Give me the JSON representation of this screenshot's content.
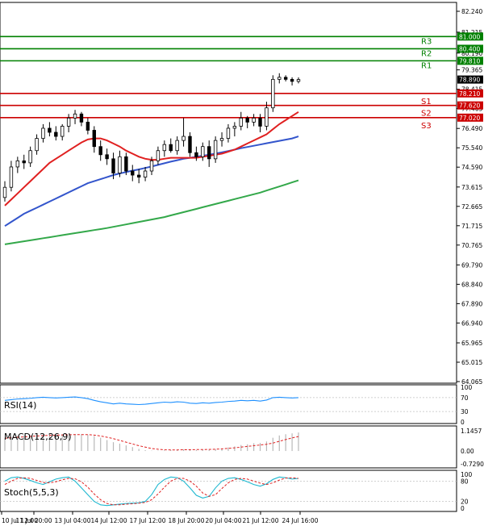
{
  "chart_data": {
    "type": "candlestick",
    "instrument_note": "",
    "main": {
      "yticks": [
        "82.240",
        "81.215",
        "80.190",
        "79.365",
        "78.415",
        "77.465",
        "76.490",
        "75.540",
        "74.590",
        "73.615",
        "72.665",
        "71.715",
        "70.765",
        "69.790",
        "68.840",
        "67.890",
        "66.940",
        "65.965",
        "65.015",
        "64.065"
      ],
      "ylim": [
        64.065,
        82.7
      ],
      "levels": [
        {
          "name": "R3",
          "value": 81.0,
          "label": "81.000",
          "color": "#008000"
        },
        {
          "name": "R2",
          "value": 80.4,
          "label": "80.400",
          "color": "#008000"
        },
        {
          "name": "R1",
          "value": 79.81,
          "label": "79.810",
          "color": "#008000"
        },
        {
          "name": "S1",
          "value": 78.21,
          "label": "78.210",
          "color": "#cc0000"
        },
        {
          "name": "S2",
          "value": 77.62,
          "label": "77.620",
          "color": "#cc0000"
        },
        {
          "name": "S3",
          "value": 77.02,
          "label": "77.020",
          "color": "#cc0000"
        }
      ],
      "current_price": "78.890",
      "candles": [
        [
          73.1,
          73.9,
          72.9,
          73.6
        ],
        [
          73.6,
          74.9,
          73.4,
          74.6
        ],
        [
          74.6,
          75.1,
          74.3,
          74.9
        ],
        [
          74.9,
          75.2,
          74.5,
          74.8
        ],
        [
          74.8,
          75.6,
          74.6,
          75.4
        ],
        [
          75.4,
          76.2,
          75.2,
          76.0
        ],
        [
          76.0,
          76.7,
          75.8,
          76.5
        ],
        [
          76.5,
          76.8,
          76.1,
          76.3
        ],
        [
          76.3,
          76.6,
          75.9,
          76.1
        ],
        [
          76.1,
          76.7,
          75.9,
          76.6
        ],
        [
          76.6,
          77.2,
          76.3,
          77.0
        ],
        [
          77.0,
          77.4,
          76.7,
          77.2
        ],
        [
          77.2,
          77.3,
          76.6,
          76.8
        ],
        [
          76.8,
          77.0,
          76.2,
          76.4
        ],
        [
          76.4,
          76.6,
          75.3,
          75.6
        ],
        [
          75.6,
          75.9,
          74.9,
          75.2
        ],
        [
          75.2,
          75.5,
          74.7,
          75.0
        ],
        [
          75.0,
          75.3,
          74.0,
          74.3
        ],
        [
          74.3,
          75.4,
          74.1,
          75.1
        ],
        [
          75.1,
          75.3,
          74.2,
          74.4
        ],
        [
          74.4,
          74.7,
          73.9,
          74.2
        ],
        [
          74.2,
          74.5,
          73.8,
          74.1
        ],
        [
          74.1,
          74.6,
          73.9,
          74.4
        ],
        [
          74.4,
          75.1,
          74.2,
          74.9
        ],
        [
          74.9,
          75.6,
          74.7,
          75.4
        ],
        [
          75.4,
          75.9,
          75.1,
          75.7
        ],
        [
          75.7,
          76.0,
          75.3,
          75.4
        ],
        [
          75.4,
          76.1,
          75.2,
          75.9
        ],
        [
          75.9,
          77.0,
          75.6,
          76.1
        ],
        [
          76.1,
          76.3,
          75.1,
          75.3
        ],
        [
          75.3,
          75.6,
          74.9,
          75.1
        ],
        [
          75.1,
          75.8,
          74.9,
          75.6
        ],
        [
          75.6,
          75.9,
          74.6,
          75.0
        ],
        [
          75.0,
          76.1,
          74.8,
          75.9
        ],
        [
          75.9,
          76.3,
          75.6,
          76.0
        ],
        [
          76.0,
          76.7,
          75.8,
          76.5
        ],
        [
          76.5,
          76.8,
          76.1,
          76.6
        ],
        [
          76.6,
          77.3,
          76.4,
          77.0
        ],
        [
          77.0,
          77.1,
          76.5,
          76.8
        ],
        [
          76.8,
          77.2,
          76.6,
          77.0
        ],
        [
          77.0,
          77.2,
          76.3,
          76.6
        ],
        [
          76.6,
          77.8,
          76.4,
          77.5
        ],
        [
          77.5,
          79.1,
          77.3,
          78.9
        ],
        [
          78.9,
          79.2,
          78.7,
          79.0
        ],
        [
          79.0,
          79.1,
          78.8,
          78.9
        ],
        [
          78.9,
          79.0,
          78.6,
          78.8
        ],
        [
          78.8,
          79.0,
          78.7,
          78.89
        ]
      ],
      "ma_fast": [
        72.7,
        73.0,
        73.3,
        73.6,
        73.9,
        74.2,
        74.5,
        74.8,
        75.0,
        75.2,
        75.4,
        75.6,
        75.8,
        75.95,
        76.0,
        76.0,
        75.9,
        75.75,
        75.6,
        75.4,
        75.25,
        75.1,
        75.0,
        74.95,
        74.95,
        75.0,
        75.05,
        75.05,
        75.05,
        75.05,
        75.05,
        75.1,
        75.15,
        75.2,
        75.25,
        75.35,
        75.45,
        75.6,
        75.75,
        75.9,
        76.05,
        76.2,
        76.45,
        76.7,
        76.9,
        77.1,
        77.3
      ],
      "ma_mid": [
        71.7,
        71.9,
        72.1,
        72.3,
        72.45,
        72.6,
        72.75,
        72.9,
        73.05,
        73.2,
        73.35,
        73.5,
        73.65,
        73.8,
        73.9,
        74.0,
        74.1,
        74.2,
        74.28,
        74.35,
        74.42,
        74.48,
        74.55,
        74.62,
        74.7,
        74.78,
        74.86,
        74.93,
        75.0,
        75.05,
        75.1,
        75.15,
        75.2,
        75.26,
        75.32,
        75.38,
        75.45,
        75.52,
        75.58,
        75.64,
        75.7,
        75.76,
        75.82,
        75.88,
        75.94,
        76.0,
        76.1
      ],
      "ma_slow": [
        70.8,
        70.85,
        70.9,
        70.95,
        71.0,
        71.05,
        71.1,
        71.15,
        71.2,
        71.25,
        71.3,
        71.35,
        71.4,
        71.45,
        71.5,
        71.55,
        71.6,
        71.66,
        71.72,
        71.78,
        71.84,
        71.9,
        71.96,
        72.02,
        72.08,
        72.14,
        72.22,
        72.3,
        72.38,
        72.46,
        72.54,
        72.62,
        72.7,
        72.78,
        72.86,
        72.94,
        73.02,
        73.1,
        73.18,
        73.26,
        73.34,
        73.44,
        73.54,
        73.64,
        73.74,
        73.84,
        73.94
      ]
    },
    "rsi": {
      "label": "RSI(14)",
      "yticks": [
        "100",
        "70",
        "30",
        "0"
      ],
      "values": [
        62,
        64,
        66,
        67,
        68,
        70,
        71,
        70,
        69,
        70,
        71,
        72,
        70,
        67,
        62,
        58,
        55,
        52,
        54,
        52,
        51,
        50,
        51,
        53,
        55,
        57,
        56,
        58,
        57,
        54,
        53,
        55,
        54,
        56,
        57,
        59,
        60,
        62,
        61,
        62,
        60,
        63,
        70,
        71,
        70,
        69,
        70
      ]
    },
    "macd": {
      "label": "MACD(12,26,9)",
      "yticks": [
        "1.1457",
        "0.00",
        "-0.7290"
      ],
      "histogram": [
        0.75,
        0.8,
        0.85,
        0.88,
        0.9,
        0.93,
        0.95,
        0.96,
        0.95,
        0.95,
        0.96,
        0.96,
        0.95,
        0.92,
        0.85,
        0.75,
        0.62,
        0.5,
        0.42,
        0.32,
        0.22,
        0.12,
        0.05,
        0.02,
        0.02,
        0.04,
        0.05,
        0.07,
        0.09,
        0.07,
        0.05,
        0.07,
        0.06,
        0.1,
        0.14,
        0.2,
        0.26,
        0.34,
        0.38,
        0.44,
        0.46,
        0.54,
        0.75,
        0.88,
        0.95,
        1.0,
        1.05
      ],
      "signal": [
        0.72,
        0.75,
        0.78,
        0.8,
        0.83,
        0.85,
        0.87,
        0.89,
        0.9,
        0.91,
        0.92,
        0.93,
        0.93,
        0.93,
        0.9,
        0.85,
        0.78,
        0.7,
        0.6,
        0.5,
        0.4,
        0.3,
        0.22,
        0.14,
        0.1,
        0.07,
        0.06,
        0.06,
        0.07,
        0.07,
        0.08,
        0.08,
        0.09,
        0.1,
        0.12,
        0.15,
        0.18,
        0.22,
        0.26,
        0.3,
        0.34,
        0.38,
        0.45,
        0.55,
        0.65,
        0.74,
        0.82
      ]
    },
    "stoch": {
      "label": "Stoch(5,5,3)",
      "yticks": [
        "100",
        "80",
        "20",
        "0"
      ],
      "k": [
        80,
        90,
        92,
        88,
        82,
        75,
        70,
        78,
        86,
        90,
        92,
        80,
        60,
        40,
        20,
        10,
        8,
        10,
        12,
        14,
        15,
        16,
        20,
        40,
        70,
        85,
        92,
        90,
        80,
        60,
        38,
        30,
        35,
        60,
        80,
        88,
        90,
        85,
        78,
        70,
        65,
        72,
        85,
        92,
        90,
        86,
        88
      ],
      "d": [
        70,
        80,
        88,
        90,
        88,
        82,
        76,
        75,
        78,
        84,
        88,
        87,
        78,
        62,
        42,
        25,
        14,
        10,
        10,
        12,
        13,
        15,
        17,
        25,
        42,
        62,
        80,
        88,
        88,
        80,
        65,
        45,
        35,
        40,
        58,
        75,
        85,
        88,
        86,
        80,
        74,
        70,
        75,
        83,
        89,
        90,
        88
      ]
    },
    "x_labels": [
      "10 Jul 12:00",
      "11 Jul 20:00",
      "13 Jul 04:00",
      "14 Jul 12:00",
      "17 Jul 12:00",
      "18 Jul 20:00",
      "20 Jul 04:00",
      "21 Jul 12:00",
      "24 Jul 16:00"
    ],
    "colors": {
      "bull": "#ffffff",
      "bear": "#000000",
      "ma_fast": "#e02020",
      "ma_mid": "#3355cc",
      "ma_slow": "#33a84a",
      "rsi": "#1e90ff",
      "macd_signal": "#e02020",
      "stoch_k": "#1eb8d0",
      "stoch_d": "#e02020"
    }
  }
}
